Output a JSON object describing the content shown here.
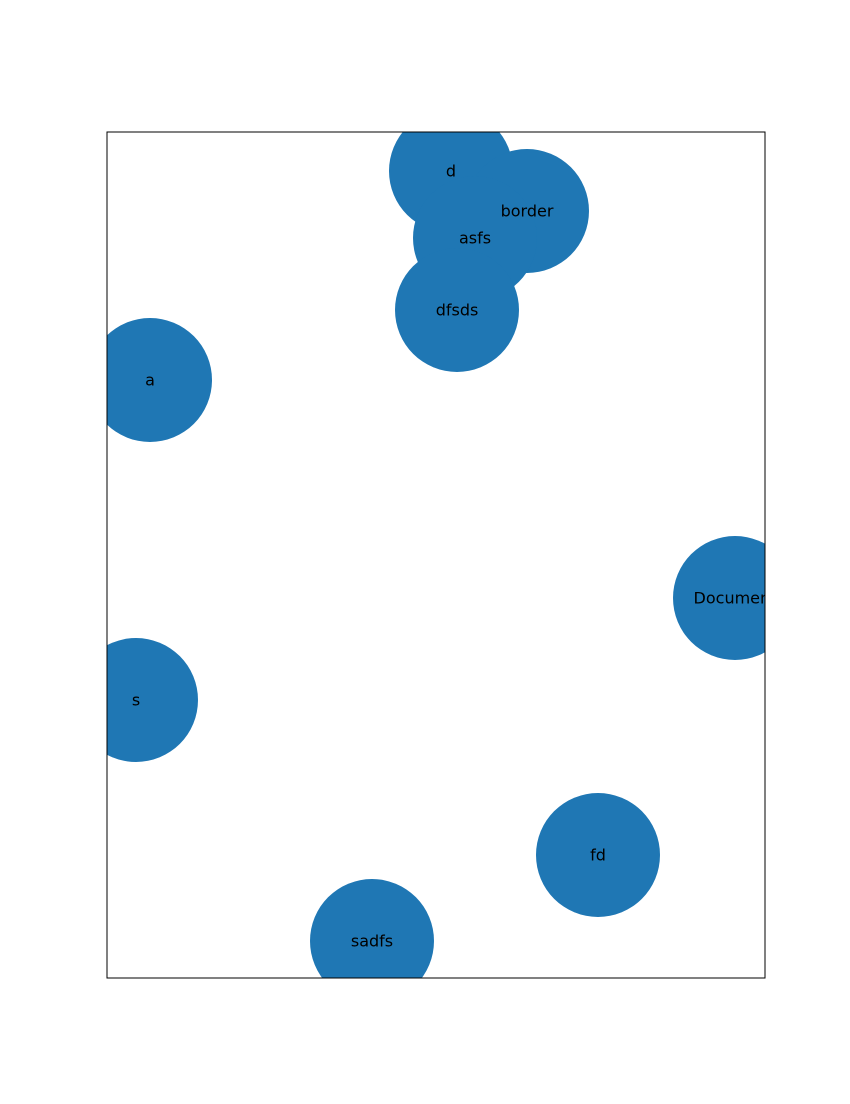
{
  "graph": {
    "node_color": "#1f77b4",
    "label_color": "#000000",
    "frame_color": "#000000",
    "background": "#ffffff",
    "nodes": [
      {
        "label": "d"
      },
      {
        "label": "border"
      },
      {
        "label": "asfs"
      },
      {
        "label": "dfsds"
      },
      {
        "label": "a"
      },
      {
        "label": "Document"
      },
      {
        "label": "s"
      },
      {
        "label": "fd"
      },
      {
        "label": "sadfs"
      }
    ]
  }
}
